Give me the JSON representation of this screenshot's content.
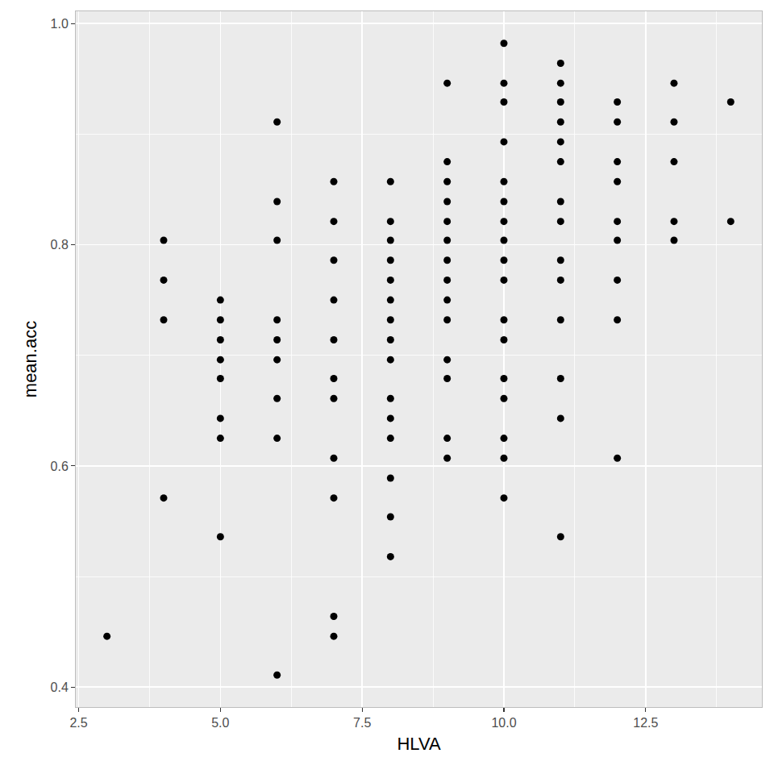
{
  "chart_data": {
    "type": "scatter",
    "xlabel": "HLVA",
    "ylabel": "mean.acc",
    "color": "#000000",
    "marker": "circle",
    "grid": true,
    "xlim": [
      2.45,
      14.55
    ],
    "ylim": [
      0.382,
      1.011
    ],
    "xticks": [
      2.5,
      {
        "value": 5,
        "label": "5.0"
      },
      7.5,
      {
        "value": 10,
        "label": "10.0"
      },
      12.5
    ],
    "yticks": [
      0.4,
      0.6,
      0.8,
      {
        "value": 1,
        "label": "1.0"
      }
    ],
    "x": [
      3,
      4,
      4,
      4,
      4,
      5,
      5,
      5,
      5,
      5,
      5,
      5,
      5,
      6,
      6,
      6,
      6,
      6,
      6,
      6,
      6,
      6,
      7,
      7,
      7,
      7,
      7,
      7,
      7,
      7,
      7,
      7,
      7,
      8,
      8,
      8,
      8,
      8,
      8,
      8,
      8,
      8,
      8,
      8,
      8,
      8,
      8,
      8,
      9,
      9,
      9,
      9,
      9,
      9,
      9,
      9,
      9,
      9,
      9,
      9,
      9,
      9,
      10,
      10,
      10,
      10,
      10,
      10,
      10,
      10,
      10,
      10,
      10,
      10,
      10,
      10,
      10,
      10,
      10,
      11,
      11,
      11,
      11,
      11,
      11,
      11,
      11,
      11,
      11,
      11,
      11,
      11,
      11,
      12,
      12,
      12,
      12,
      12,
      12,
      12,
      12,
      12,
      13,
      13,
      13,
      13,
      13,
      14,
      14
    ],
    "values": [
      0.446,
      0.804,
      0.768,
      0.732,
      0.571,
      0.75,
      0.732,
      0.714,
      0.696,
      0.679,
      0.643,
      0.625,
      0.536,
      0.911,
      0.839,
      0.804,
      0.732,
      0.714,
      0.696,
      0.661,
      0.625,
      0.411,
      0.857,
      0.821,
      0.786,
      0.75,
      0.714,
      0.679,
      0.661,
      0.607,
      0.571,
      0.464,
      0.446,
      0.857,
      0.821,
      0.804,
      0.786,
      0.768,
      0.75,
      0.732,
      0.714,
      0.696,
      0.661,
      0.643,
      0.625,
      0.589,
      0.554,
      0.518,
      0.946,
      0.875,
      0.857,
      0.839,
      0.821,
      0.804,
      0.786,
      0.768,
      0.75,
      0.732,
      0.696,
      0.679,
      0.625,
      0.607,
      0.982,
      0.946,
      0.929,
      0.893,
      0.857,
      0.839,
      0.821,
      0.804,
      0.786,
      0.768,
      0.732,
      0.714,
      0.679,
      0.661,
      0.625,
      0.607,
      0.571,
      0.964,
      0.946,
      0.929,
      0.911,
      0.893,
      0.875,
      0.839,
      0.821,
      0.786,
      0.768,
      0.732,
      0.679,
      0.643,
      0.536,
      0.929,
      0.911,
      0.875,
      0.857,
      0.821,
      0.804,
      0.768,
      0.732,
      0.607,
      0.946,
      0.911,
      0.875,
      0.821,
      0.804,
      0.929,
      0.821
    ]
  }
}
